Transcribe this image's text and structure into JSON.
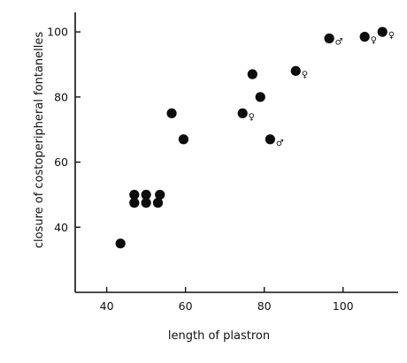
{
  "chart_data": {
    "type": "scatter",
    "title": "",
    "xlabel": "length of plastron",
    "ylabel": "closure of costoperipheral fontanelles",
    "xlim": [
      32,
      114
    ],
    "ylim": [
      20,
      106
    ],
    "xticks": [
      40,
      60,
      80,
      100
    ],
    "yticks": [
      40,
      60,
      80,
      100
    ],
    "grid": false,
    "points": [
      {
        "x": 43.5,
        "y": 35,
        "label": ""
      },
      {
        "x": 47,
        "y": 50,
        "label": ""
      },
      {
        "x": 50,
        "y": 50,
        "label": ""
      },
      {
        "x": 53.5,
        "y": 50,
        "label": ""
      },
      {
        "x": 47,
        "y": 47.5,
        "label": ""
      },
      {
        "x": 50,
        "y": 47.5,
        "label": ""
      },
      {
        "x": 53,
        "y": 47.5,
        "label": ""
      },
      {
        "x": 56.5,
        "y": 75,
        "label": ""
      },
      {
        "x": 59.5,
        "y": 67,
        "label": ""
      },
      {
        "x": 74.5,
        "y": 75,
        "label": "♀"
      },
      {
        "x": 77,
        "y": 87,
        "label": ""
      },
      {
        "x": 79,
        "y": 80,
        "label": ""
      },
      {
        "x": 81.5,
        "y": 67,
        "label": "♂"
      },
      {
        "x": 88,
        "y": 88,
        "label": "♀"
      },
      {
        "x": 96.5,
        "y": 98,
        "label": "♂"
      },
      {
        "x": 105.5,
        "y": 98.5,
        "label": "♀"
      },
      {
        "x": 110,
        "y": 100,
        "label": "♀"
      }
    ]
  }
}
